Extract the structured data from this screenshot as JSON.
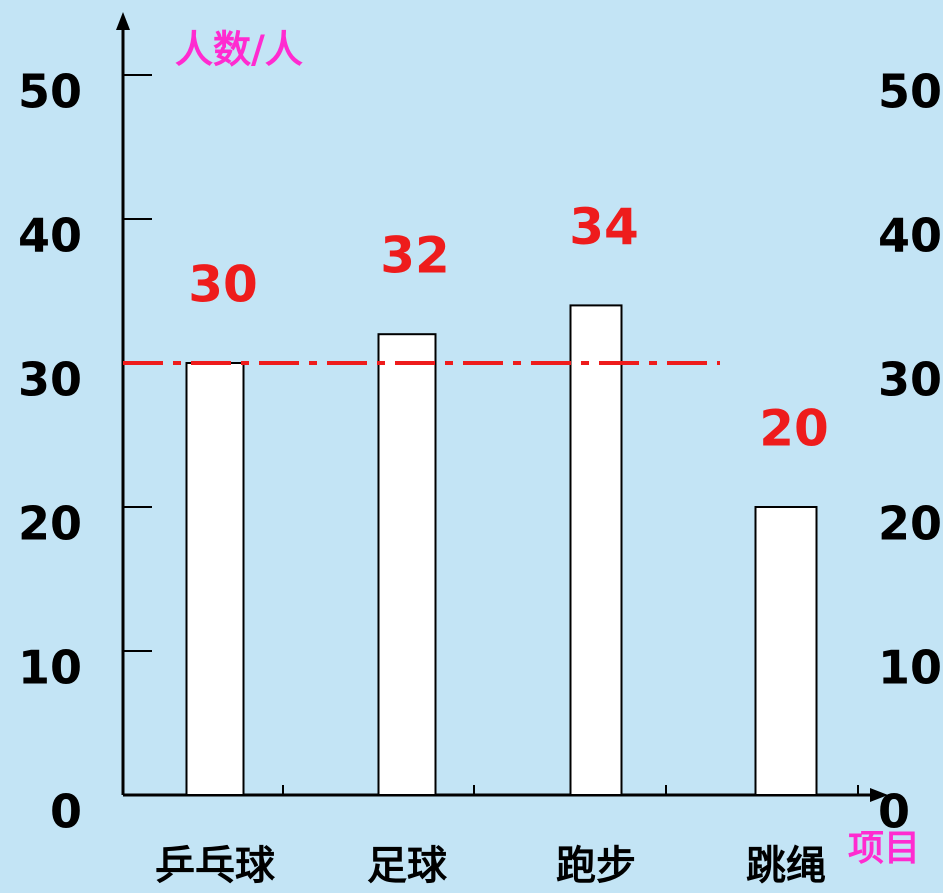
{
  "chart_data": {
    "type": "bar",
    "y_label": "人数/人",
    "x_label": "项目",
    "categories": [
      "乒乓球",
      "足球",
      "跑步",
      "跳绳"
    ],
    "values": [
      30,
      32,
      34,
      20
    ],
    "color": "#ffffff",
    "value_label_color": "#ee1c1c",
    "ylim": [
      0,
      50
    ],
    "yticks": [
      0,
      10,
      20,
      30,
      40,
      50
    ],
    "reference_line": 30
  }
}
